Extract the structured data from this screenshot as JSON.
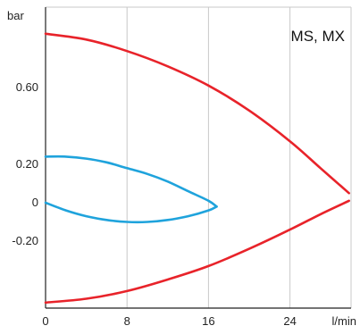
{
  "chart_data": {
    "type": "line",
    "title": "",
    "corner_label": "MS, MX",
    "xlabel": "l/min",
    "ylabel": "bar",
    "xlim": [
      0,
      30
    ],
    "ylim": [
      -0.62,
      1.0
    ],
    "grid": true,
    "x_ticks": [
      {
        "value": 0,
        "label": "0"
      },
      {
        "value": 8,
        "label": "8"
      },
      {
        "value": 16,
        "label": "16"
      },
      {
        "value": 24,
        "label": "24"
      }
    ],
    "y_ticks": [
      {
        "value": 0.6,
        "label": "0.60"
      },
      {
        "value": 0.2,
        "label": "0.20"
      },
      {
        "value": 0,
        "label": "0"
      },
      {
        "value": -0.2,
        "label": "-0.20"
      }
    ],
    "colors": {
      "red": "#e8232a",
      "blue": "#1fa3dc",
      "grid": "#c8c8c8",
      "axis": "#222222"
    },
    "series": [
      {
        "color": "red",
        "points": [
          [
            0,
            0.88
          ],
          [
            4,
            0.85
          ],
          [
            8,
            0.79
          ],
          [
            12,
            0.71
          ],
          [
            16,
            0.61
          ],
          [
            20,
            0.48
          ],
          [
            24,
            0.32
          ],
          [
            27,
            0.18
          ],
          [
            29.8,
            0.05
          ]
        ]
      },
      {
        "color": "red",
        "points": [
          [
            0,
            -0.52
          ],
          [
            4,
            -0.5
          ],
          [
            8,
            -0.46
          ],
          [
            12,
            -0.4
          ],
          [
            16,
            -0.33
          ],
          [
            20,
            -0.24
          ],
          [
            24,
            -0.14
          ],
          [
            27,
            -0.06
          ],
          [
            29.8,
            0.01
          ]
        ]
      },
      {
        "color": "blue",
        "points": [
          [
            0,
            0.24
          ],
          [
            2,
            0.24
          ],
          [
            4,
            0.23
          ],
          [
            6,
            0.21
          ],
          [
            8,
            0.18
          ],
          [
            10,
            0.15
          ],
          [
            12,
            0.11
          ],
          [
            14,
            0.06
          ],
          [
            16,
            0.01
          ],
          [
            16.8,
            -0.02
          ]
        ]
      },
      {
        "color": "blue",
        "points": [
          [
            0,
            0.0
          ],
          [
            2,
            -0.04
          ],
          [
            4,
            -0.07
          ],
          [
            6,
            -0.09
          ],
          [
            8,
            -0.1
          ],
          [
            10,
            -0.1
          ],
          [
            12,
            -0.09
          ],
          [
            14,
            -0.07
          ],
          [
            16,
            -0.04
          ],
          [
            16.8,
            -0.02
          ]
        ]
      }
    ]
  }
}
